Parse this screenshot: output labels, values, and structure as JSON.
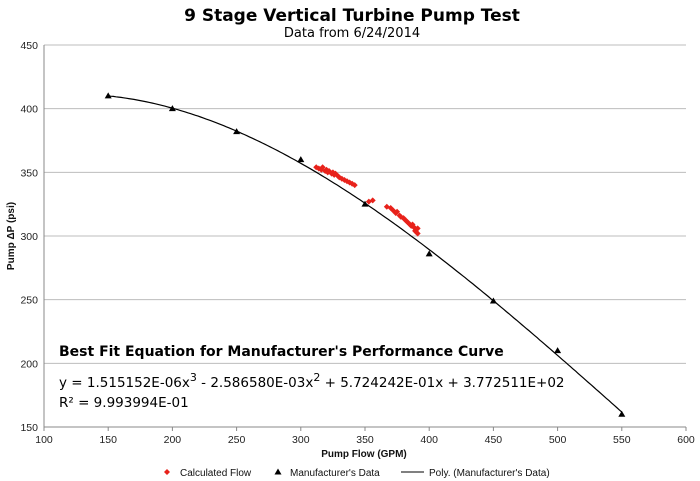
{
  "chart_data": {
    "type": "scatter",
    "title": "9 Stage Vertical Turbine Pump Test",
    "subtitle": "Data from 6/24/2014",
    "xlabel": "Pump Flow (GPM)",
    "ylabel": "Pump ΔP (psi)",
    "xlim": [
      100,
      600
    ],
    "ylim": [
      150,
      450
    ],
    "x_ticks": [
      "100",
      "150",
      "200",
      "250",
      "300",
      "350",
      "400",
      "450",
      "500",
      "550",
      "600"
    ],
    "y_ticks": [
      "150",
      "200",
      "250",
      "300",
      "350",
      "400",
      "450"
    ],
    "grid": "horizontal",
    "legend_position": "bottom",
    "series": [
      {
        "name": "Calculated Flow",
        "marker": "diamond",
        "color": "#e8221b",
        "points": [
          [
            312,
            354
          ],
          [
            314,
            353
          ],
          [
            316,
            352
          ],
          [
            317,
            354
          ],
          [
            319,
            351
          ],
          [
            320,
            352
          ],
          [
            321,
            350
          ],
          [
            322,
            351
          ],
          [
            324,
            349
          ],
          [
            325,
            350
          ],
          [
            326,
            348
          ],
          [
            327,
            349
          ],
          [
            329,
            347
          ],
          [
            330,
            346
          ],
          [
            332,
            345
          ],
          [
            334,
            344
          ],
          [
            336,
            343
          ],
          [
            338,
            342
          ],
          [
            340,
            341
          ],
          [
            342,
            340
          ],
          [
            353,
            327
          ],
          [
            356,
            328
          ],
          [
            367,
            323
          ],
          [
            370,
            322
          ],
          [
            372,
            320
          ],
          [
            374,
            318
          ],
          [
            375,
            319
          ],
          [
            377,
            316
          ],
          [
            378,
            315
          ],
          [
            380,
            314
          ],
          [
            381,
            313
          ],
          [
            382,
            312
          ],
          [
            383,
            311
          ],
          [
            384,
            310
          ],
          [
            385,
            309
          ],
          [
            386,
            308
          ],
          [
            387,
            309
          ],
          [
            388,
            307
          ],
          [
            389,
            306
          ],
          [
            390,
            305
          ],
          [
            390,
            303
          ],
          [
            391,
            302
          ],
          [
            389,
            304
          ],
          [
            391,
            306
          ]
        ]
      },
      {
        "name": "Manufacturer's Data",
        "marker": "triangle",
        "color": "#000000",
        "points": [
          [
            150,
            410
          ],
          [
            200,
            400
          ],
          [
            250,
            382
          ],
          [
            300,
            360
          ],
          [
            350,
            325
          ],
          [
            400,
            286
          ],
          [
            450,
            249
          ],
          [
            500,
            210
          ],
          [
            550,
            160
          ]
        ]
      },
      {
        "name": "Poly. (Manufacturer's Data)",
        "type": "line",
        "color": "#000000",
        "coefficients": [
          1.515152e-06,
          -0.00258658,
          0.5724242,
          377.2511
        ],
        "range": [
          150,
          550
        ]
      }
    ],
    "annotation": {
      "heading": "Best Fit Equation for Manufacturer's Performance Curve",
      "equation": {
        "y_prefix": "y = ",
        "c3": "1.515152E-06x",
        "p3": "3",
        "c2": " - 2.586580E-03x",
        "p2": "2",
        "rest": " + 5.724242E-01x + 3.772511E+02"
      },
      "r2": "R² = 9.993994E-01"
    }
  }
}
